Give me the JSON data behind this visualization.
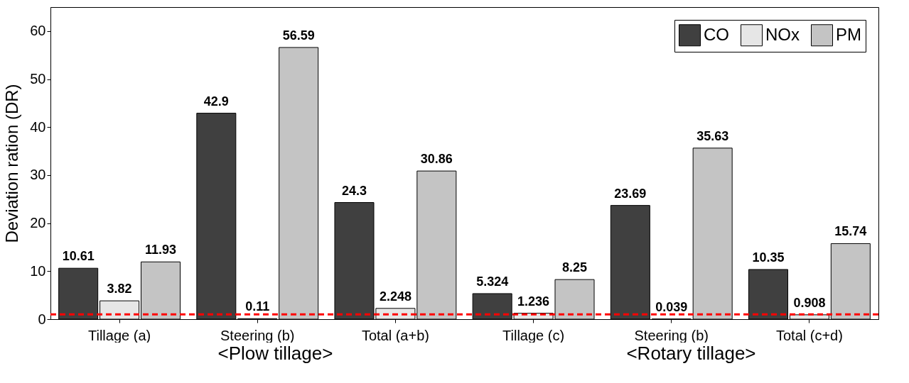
{
  "chart_data": {
    "type": "bar",
    "ylabel": "Deviation ration (DR)",
    "categories": [
      "Tillage (a)",
      "Steering (b)",
      "Total (a+b)",
      "Tillage (c)",
      "Steering (b)",
      "Total (c+d)"
    ],
    "series": [
      {
        "name": "CO",
        "color": "#404040",
        "values": [
          10.61,
          42.9,
          24.3,
          5.324,
          23.69,
          10.35
        ]
      },
      {
        "name": "NOx",
        "color": "#e6e6e6",
        "values": [
          3.82,
          0.11,
          2.248,
          1.236,
          0.039,
          0.908
        ]
      },
      {
        "name": "PM",
        "color": "#c4c4c4",
        "values": [
          11.93,
          56.59,
          30.86,
          8.25,
          35.63,
          15.74
        ]
      }
    ],
    "ylim": [
      0,
      65
    ],
    "yticks": [
      0,
      10,
      20,
      30,
      40,
      50,
      60
    ],
    "data_labels": true,
    "legend": "top right",
    "ref_lines": [
      {
        "axis": "y",
        "value": 1,
        "color": "#ff0000",
        "line_style": "dashed"
      }
    ],
    "annotations": [
      "<Plow tillage>",
      "<Rotary tillage>"
    ]
  }
}
